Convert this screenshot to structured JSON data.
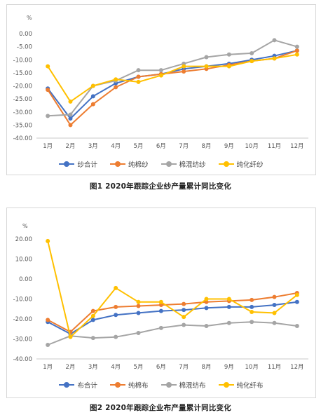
{
  "chart_data": [
    {
      "type": "line",
      "title": "图1 2020年跟踪企业纱产量累计同比变化",
      "unit": "%",
      "categories": [
        "1月",
        "2月",
        "3月",
        "4月",
        "5月",
        "6月",
        "7月",
        "8月",
        "9月",
        "10月",
        "11月",
        "12月"
      ],
      "yticks": [
        "0.00",
        "-5.00",
        "-10.00",
        "-15.00",
        "-20.00",
        "-25.00",
        "-30.00",
        "-35.00",
        "-40.00"
      ],
      "ylim": [
        -40,
        0
      ],
      "grid": false,
      "legend_position": "bottom",
      "series": [
        {
          "name": "纱合计",
          "color": "#4472c4",
          "values": [
            -21,
            -32.5,
            -24,
            -19,
            -16.5,
            -15.5,
            -13.5,
            -12.5,
            -11.5,
            -10,
            -8.5,
            -6.5
          ]
        },
        {
          "name": "纯棉纱",
          "color": "#ed7d31",
          "values": [
            -21.5,
            -35,
            -27,
            -20.5,
            -16.5,
            -15.5,
            -14.5,
            -13.5,
            -12,
            -10.5,
            -9.5,
            -6.5
          ]
        },
        {
          "name": "棉混纺纱",
          "color": "#a5a5a5",
          "values": [
            -31.5,
            -31,
            -20,
            -18,
            -14,
            -14,
            -11.5,
            -9,
            -8,
            -7.5,
            -2.5,
            -5
          ]
        },
        {
          "name": "纯化纤纱",
          "color": "#ffc000",
          "values": [
            -12.5,
            -26,
            -20,
            -17.5,
            -18.5,
            -16,
            -12.5,
            -12.5,
            -12.5,
            -10.5,
            -9.5,
            -8
          ]
        }
      ]
    },
    {
      "type": "line",
      "title": "图2 2020年跟踪企业布产量累计同比变化",
      "unit": "%",
      "categories": [
        "1月",
        "2月",
        "3月",
        "4月",
        "5月",
        "6月",
        "7月",
        "8月",
        "9月",
        "10月",
        "11月",
        "12月"
      ],
      "yticks": [
        "20.00",
        "10.00",
        "0.00",
        "-10.00",
        "-20.00",
        "-30.00",
        "-40.00"
      ],
      "ylim": [
        -40,
        20
      ],
      "grid": false,
      "legend_position": "bottom",
      "series": [
        {
          "name": "布合计",
          "color": "#4472c4",
          "values": [
            -21.5,
            -27.5,
            -20.5,
            -18,
            -17,
            -16,
            -15.5,
            -14.5,
            -14,
            -14,
            -13,
            -11.5
          ]
        },
        {
          "name": "纯棉布",
          "color": "#ed7d31",
          "values": [
            -20.5,
            -26.5,
            -16,
            -14,
            -13.5,
            -13,
            -12.5,
            -11.5,
            -11,
            -10.5,
            -9,
            -7
          ]
        },
        {
          "name": "棉混纺布",
          "color": "#a5a5a5",
          "values": [
            -33,
            -28.5,
            -29.5,
            -29,
            -27,
            -24.5,
            -23,
            -23.5,
            -22,
            -21.5,
            -22,
            -23.5
          ]
        },
        {
          "name": "纯化纤布",
          "color": "#ffc000",
          "values": [
            19,
            -29,
            -18.5,
            -4.5,
            -11.5,
            -11.5,
            -19,
            -10,
            -10,
            -16.5,
            -17,
            -8
          ]
        }
      ]
    }
  ]
}
